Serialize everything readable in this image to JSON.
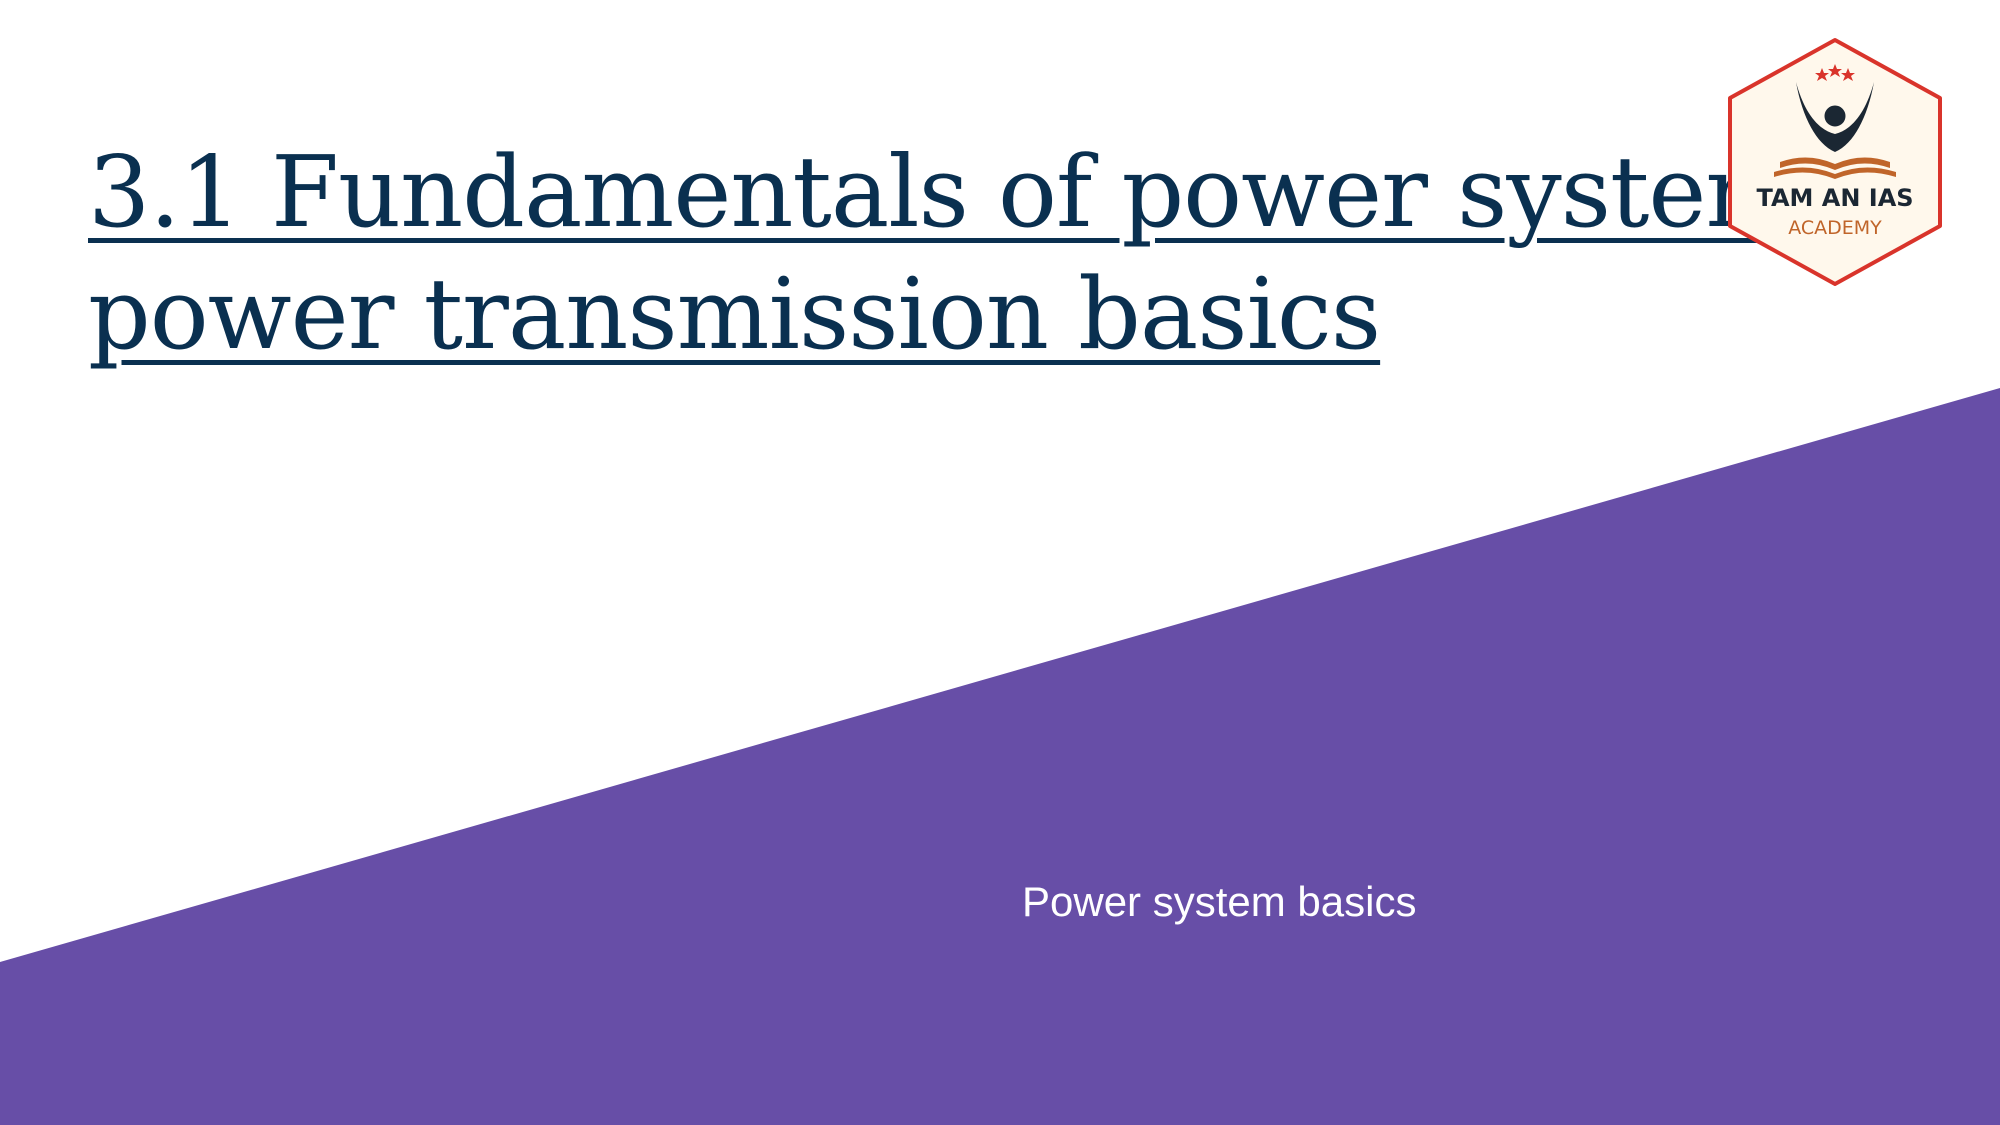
{
  "slide": {
    "title_line1": "3.1 Fundamentals of power systems,",
    "title_line2": "power transmission basics",
    "subtitle": "Power system basics"
  },
  "logo": {
    "text_top": "TAM AN IAS",
    "text_bottom": "ACADEMY",
    "icon": "academy-emblem-icon"
  },
  "colors": {
    "accent": "#674ea7",
    "title": "#0a3050",
    "logo_border": "#d9342b",
    "logo_orange": "#c0652a"
  }
}
